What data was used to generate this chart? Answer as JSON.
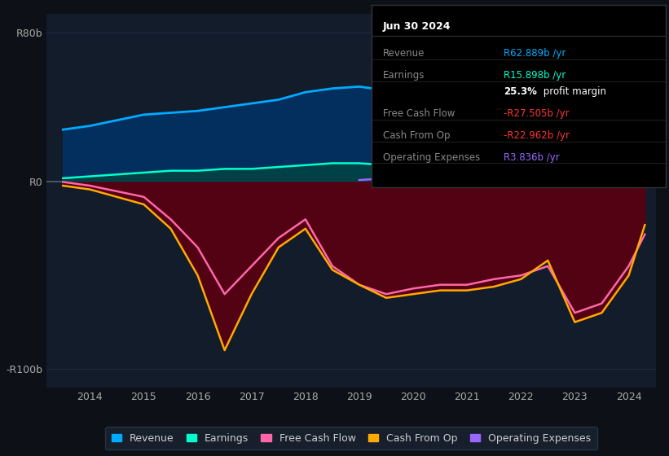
{
  "bg_color": "#0d1117",
  "plot_bg_color": "#131c2b",
  "grid_color": "#1e2d3d",
  "zero_line_color": "#4a5a6a",
  "years": [
    2013.5,
    2014,
    2014.5,
    2015,
    2015.5,
    2016,
    2016.5,
    2017,
    2017.5,
    2018,
    2018.5,
    2019,
    2019.5,
    2020,
    2020.5,
    2021,
    2021.5,
    2022,
    2022.5,
    2023,
    2023.5,
    2024,
    2024.3
  ],
  "revenue": [
    28,
    30,
    33,
    36,
    37,
    38,
    40,
    42,
    44,
    48,
    50,
    51,
    49,
    45,
    46,
    50,
    53,
    55,
    58,
    57,
    59,
    62,
    63
  ],
  "earnings": [
    2,
    3,
    4,
    5,
    6,
    6,
    7,
    7,
    8,
    9,
    10,
    10,
    9,
    8,
    8,
    9,
    9,
    9,
    8,
    9,
    13,
    15,
    16
  ],
  "free_cash_flow": [
    0,
    -2,
    -5,
    -8,
    -20,
    -35,
    -60,
    -45,
    -30,
    -20,
    -45,
    -55,
    -60,
    -57,
    -55,
    -55,
    -52,
    -50,
    -45,
    -70,
    -65,
    -45,
    -28
  ],
  "cash_from_op": [
    -2,
    -4,
    -8,
    -12,
    -25,
    -50,
    -90,
    -60,
    -35,
    -25,
    -47,
    -55,
    -62,
    -60,
    -58,
    -58,
    -56,
    -52,
    -42,
    -75,
    -70,
    -50,
    -23
  ],
  "operating_expenses": [
    null,
    null,
    null,
    null,
    null,
    null,
    null,
    null,
    null,
    null,
    null,
    1,
    2,
    3,
    3,
    2,
    2,
    3,
    4,
    3,
    3,
    4,
    4
  ],
  "revenue_color": "#00aaff",
  "earnings_color": "#00ffcc",
  "fcf_color": "#ff66aa",
  "cfop_color": "#ffaa00",
  "opex_color": "#9966ff",
  "revenue_fill": "#003366",
  "earnings_fill": "#004444",
  "negative_fill": "#5a0011",
  "ylim": [
    -110,
    90
  ],
  "yticks": [
    -100,
    0,
    80
  ],
  "ytick_labels": [
    "-R100b",
    "R0",
    "R80b"
  ],
  "xticks": [
    2014,
    2015,
    2016,
    2017,
    2018,
    2019,
    2020,
    2021,
    2022,
    2023,
    2024
  ],
  "tooltip_title": "Jun 30 2024",
  "tooltip_rows": [
    {
      "label": "Revenue",
      "value": "R62.889b /yr",
      "color": "#00aaff"
    },
    {
      "label": "Earnings",
      "value": "R15.898b /yr",
      "color": "#00ffcc"
    },
    {
      "label": "",
      "value": "25.3% profit margin",
      "color": "#ffffff"
    },
    {
      "label": "Free Cash Flow",
      "value": "-R27.505b /yr",
      "color": "#ff3333"
    },
    {
      "label": "Cash From Op",
      "value": "-R22.962b /yr",
      "color": "#ff3333"
    },
    {
      "label": "Operating Expenses",
      "value": "R3.836b /yr",
      "color": "#9966ff"
    }
  ]
}
